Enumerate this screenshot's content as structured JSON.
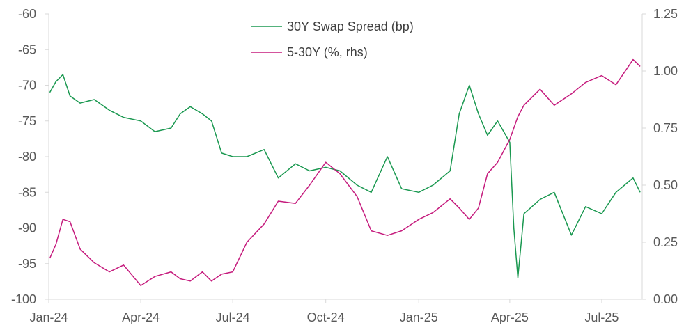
{
  "chart_data": {
    "type": "line",
    "title": "",
    "xlabel": "",
    "ylabel": "",
    "x_ticks": [
      "Jan-24",
      "Apr-24",
      "Jul-24",
      "Oct-24",
      "Jan-25",
      "Apr-25",
      "Jul-25"
    ],
    "left_axis": {
      "ticks": [
        "-60",
        "-65",
        "-70",
        "-75",
        "-80",
        "-85",
        "-90",
        "-95",
        "-100"
      ],
      "range": [
        -100,
        -60
      ]
    },
    "right_axis": {
      "ticks": [
        "1.25",
        "1.00",
        "0.75",
        "0.50",
        "0.25",
        "0.00"
      ],
      "range": [
        0,
        1.25
      ]
    },
    "grid": false,
    "legend_position": "top-center",
    "series": [
      {
        "name": "30Y Swap Spread (bp)",
        "axis": "left",
        "color": "#1a9850",
        "x": [
          "2024-01-02",
          "2024-01-08",
          "2024-01-15",
          "2024-01-22",
          "2024-02-01",
          "2024-02-15",
          "2024-03-01",
          "2024-03-15",
          "2024-04-01",
          "2024-04-15",
          "2024-05-01",
          "2024-05-10",
          "2024-05-20",
          "2024-06-01",
          "2024-06-10",
          "2024-06-20",
          "2024-07-01",
          "2024-07-15",
          "2024-08-01",
          "2024-08-15",
          "2024-09-01",
          "2024-09-15",
          "2024-10-01",
          "2024-10-15",
          "2024-11-01",
          "2024-11-15",
          "2024-12-01",
          "2024-12-15",
          "2025-01-01",
          "2025-01-15",
          "2025-02-01",
          "2025-02-10",
          "2025-02-20",
          "2025-03-01",
          "2025-03-10",
          "2025-03-20",
          "2025-04-01",
          "2025-04-05",
          "2025-04-09",
          "2025-04-15",
          "2025-05-01",
          "2025-05-15",
          "2025-06-01",
          "2025-06-15",
          "2025-07-01",
          "2025-07-15",
          "2025-08-01",
          "2025-08-08"
        ],
        "values": [
          -71,
          -69.5,
          -68.5,
          -71.5,
          -72.5,
          -72,
          -73.5,
          -74.5,
          -75,
          -76.5,
          -76,
          -74,
          -73,
          -74,
          -75,
          -79.5,
          -80,
          -80,
          -79,
          -83,
          -81,
          -82,
          -81.5,
          -82,
          -84,
          -85,
          -80,
          -84.5,
          -85,
          -84,
          -82,
          -74,
          -70,
          -74,
          -77,
          -75,
          -78,
          -90,
          -97,
          -88,
          -86,
          -85,
          -91,
          -87,
          -88,
          -85,
          -83,
          -85
        ]
      },
      {
        "name": "5-30Y (%, rhs)",
        "axis": "right",
        "color": "#c51b7d",
        "x": [
          "2024-01-02",
          "2024-01-08",
          "2024-01-15",
          "2024-01-22",
          "2024-02-01",
          "2024-02-15",
          "2024-03-01",
          "2024-03-15",
          "2024-04-01",
          "2024-04-15",
          "2024-05-01",
          "2024-05-10",
          "2024-05-20",
          "2024-06-01",
          "2024-06-10",
          "2024-06-20",
          "2024-07-01",
          "2024-07-15",
          "2024-08-01",
          "2024-08-15",
          "2024-09-01",
          "2024-09-15",
          "2024-10-01",
          "2024-10-15",
          "2024-11-01",
          "2024-11-15",
          "2024-12-01",
          "2024-12-15",
          "2025-01-01",
          "2025-01-15",
          "2025-02-01",
          "2025-02-10",
          "2025-02-20",
          "2025-03-01",
          "2025-03-10",
          "2025-03-20",
          "2025-04-01",
          "2025-04-05",
          "2025-04-09",
          "2025-04-15",
          "2025-05-01",
          "2025-05-15",
          "2025-06-01",
          "2025-06-15",
          "2025-07-01",
          "2025-07-15",
          "2025-08-01",
          "2025-08-08"
        ],
        "values": [
          0.18,
          0.24,
          0.35,
          0.34,
          0.22,
          0.16,
          0.12,
          0.15,
          0.06,
          0.1,
          0.12,
          0.09,
          0.08,
          0.12,
          0.08,
          0.11,
          0.12,
          0.25,
          0.33,
          0.43,
          0.42,
          0.5,
          0.6,
          0.55,
          0.45,
          0.3,
          0.28,
          0.3,
          0.35,
          0.38,
          0.44,
          0.4,
          0.35,
          0.4,
          0.55,
          0.6,
          0.7,
          0.75,
          0.8,
          0.85,
          0.92,
          0.85,
          0.9,
          0.95,
          0.98,
          0.94,
          1.05,
          1.02
        ]
      }
    ]
  }
}
